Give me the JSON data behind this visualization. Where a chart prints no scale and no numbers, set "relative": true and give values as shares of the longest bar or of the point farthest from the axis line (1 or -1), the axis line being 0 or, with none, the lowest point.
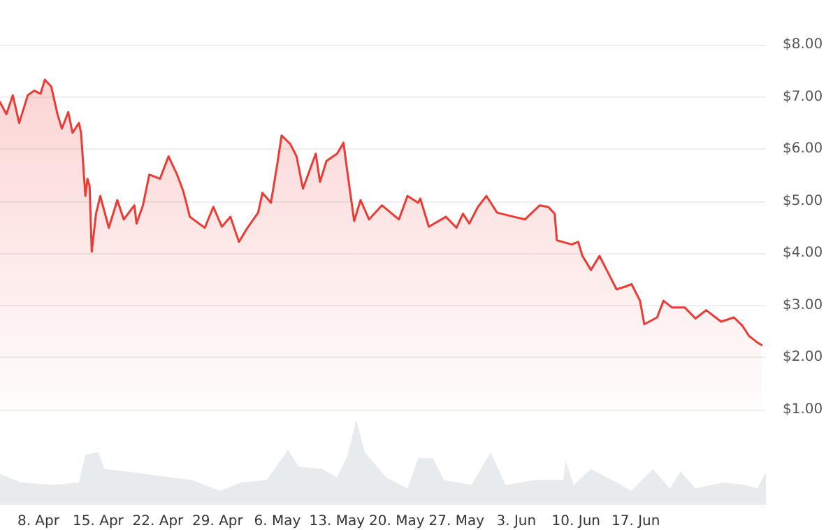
{
  "chart_data": [
    {
      "type": "area",
      "tick_labels": "y",
      "grid": "y",
      "xlim": [
        "--04-03T12:00",
        "--07-02T06:00"
      ],
      "ylim": [
        1,
        8
      ],
      "yticks": [
        {
          "value": 1,
          "label": "$1.00"
        },
        {
          "value": 2,
          "label": "$2.00"
        },
        {
          "value": 3,
          "label": "$3.00"
        },
        {
          "value": 4,
          "label": "$4.00"
        },
        {
          "value": 5,
          "label": "$5.00"
        },
        {
          "value": 6,
          "label": "$6.00"
        },
        {
          "value": 7,
          "label": "$7.00"
        },
        {
          "value": 8,
          "label": "$8.00"
        }
      ],
      "x": [
        "--04-03T12:00",
        "--04-04T06:00",
        "--04-05T00:00",
        "--04-05T18:00",
        "--04-06T18:00",
        "--04-07T12:00",
        "--04-08T06:00",
        "--04-08T18:00",
        "--04-09T12:00",
        "--04-10T06:00",
        "--04-10T18:00",
        "--04-11T12:00",
        "--04-12T00:00",
        "--04-12T18:00",
        "--04-13T00:00",
        "--04-13T12:00",
        "--04-13T18:00",
        "--04-14T00:00",
        "--04-14T06:00",
        "--04-14T18:00",
        "--04-15T06:00",
        "--04-16T06:00",
        "--04-17T06:00",
        "--04-18T00:00",
        "--04-19T06:00",
        "--04-19T12:00",
        "--04-20T06:00",
        "--04-21T00:00",
        "--04-22T06:00",
        "--04-23T06:00",
        "--04-24T06:00",
        "--04-25T00:00",
        "--04-25T18:00",
        "--04-27T12:00",
        "--04-28T12:00",
        "--04-29T12:00",
        "--04-30T12:00",
        "--05-01T12:00",
        "--05-02T12:00",
        "--05-03T18:00",
        "--05-04T06:00",
        "--05-05T06:00",
        "--05-06T00:00",
        "--05-06T12:00",
        "--05-07T12:00",
        "--05-08T06:00",
        "--05-09T00:00",
        "--05-10T12:00",
        "--05-11T00:00",
        "--05-11T18:00",
        "--05-13T00:00",
        "--05-13T18:00",
        "--05-14T06:00",
        "--05-15T00:00",
        "--05-15T18:00",
        "--05-16T18:00",
        "--05-18T06:00",
        "--05-20T06:00",
        "--05-21T06:00",
        "--05-22T12:00",
        "--05-22T18:00",
        "--05-23T18:00",
        "--05-25T18:00",
        "--05-27T00:00",
        "--05-27T18:00",
        "--05-28T12:00",
        "--05-29T12:00",
        "--05-30T12:00",
        "--05-31T18:00",
        "--06-02T18:00",
        "--06-04T00:00",
        "--06-05T18:00",
        "--06-06T18:00",
        "--06-07T12:00",
        "--06-07T18:00",
        "--06-09T12:00",
        "--06-10T06:00",
        "--06-10T18:00",
        "--06-11T18:00",
        "--06-12T18:00",
        "--06-13T18:00",
        "--06-14T18:00",
        "--06-15T18:00",
        "--06-16T12:00",
        "--06-17T12:00",
        "--06-18T00:00",
        "--06-19T12:00",
        "--06-20T06:00",
        "--06-21T06:00",
        "--06-22T18:00",
        "--06-24T00:00",
        "--06-25T06:00",
        "--06-27T00:00",
        "--06-28T12:00",
        "--06-29T12:00",
        "--06-30T06:00",
        "--07-01T06:00",
        "--07-01T18:00"
      ],
      "series": [
        {
          "color": "#ec3b35",
          "values": [
            6.9,
            6.67,
            7.03,
            6.5,
            7.03,
            7.12,
            7.06,
            7.33,
            7.2,
            6.66,
            6.39,
            6.71,
            6.31,
            6.5,
            6.31,
            5.1,
            5.43,
            5.29,
            4.03,
            4.76,
            5.1,
            4.49,
            5.02,
            4.65,
            4.92,
            4.57,
            4.92,
            5.51,
            5.43,
            5.86,
            5.51,
            5.18,
            4.7,
            4.49,
            4.89,
            4.51,
            4.7,
            4.22,
            4.49,
            4.78,
            5.16,
            4.97,
            5.72,
            6.26,
            6.1,
            5.86,
            5.24,
            5.91,
            5.37,
            5.77,
            5.91,
            6.12,
            5.51,
            4.62,
            5.02,
            4.65,
            4.92,
            4.65,
            5.1,
            4.97,
            5.05,
            4.51,
            4.7,
            4.49,
            4.76,
            4.57,
            4.89,
            5.1,
            4.78,
            4.7,
            4.65,
            4.92,
            4.89,
            4.76,
            4.25,
            4.17,
            4.22,
            3.95,
            3.68,
            3.95,
            3.63,
            3.31,
            3.36,
            3.41,
            3.09,
            2.64,
            2.77,
            3.09,
            2.96,
            2.96,
            2.75,
            2.91,
            2.69,
            2.77,
            2.61,
            2.42,
            2.29,
            2.24
          ]
        }
      ]
    },
    {
      "type": "area",
      "relative": true,
      "tick_labels": "x",
      "xlim": [
        "--04-03T12:00",
        "--07-02T06:00"
      ],
      "xticks": [
        {
          "value": "--04-08",
          "label": "8. Apr"
        },
        {
          "value": "--04-15",
          "label": "15. Apr"
        },
        {
          "value": "--04-22",
          "label": "22. Apr"
        },
        {
          "value": "--04-29",
          "label": "29. Apr"
        },
        {
          "value": "--05-06",
          "label": "6. May"
        },
        {
          "value": "--05-13",
          "label": "13. May"
        },
        {
          "value": "--05-20",
          "label": "20. May"
        },
        {
          "value": "--05-27",
          "label": "27. May"
        },
        {
          "value": "--06-03",
          "label": "3. Jun"
        },
        {
          "value": "--06-10",
          "label": "10. Jun"
        },
        {
          "value": "--06-17",
          "label": "17. Jun"
        }
      ],
      "x": [
        "--04-03T12:00",
        "--04-06T00:00",
        "--04-09T18:00",
        "--04-12T18:00",
        "--04-13T12:00",
        "--04-15T00:00",
        "--04-15T18:00",
        "--04-18T12:00",
        "--04-20T12:00",
        "--04-23T12:00",
        "--04-26T00:00",
        "--04-29T06:00",
        "--05-01T18:00",
        "--05-04T18:00",
        "--05-07T06:00",
        "--05-08T12:00",
        "--05-11T06:00",
        "--05-13T00:00",
        "--05-14T06:00",
        "--05-15T06:00",
        "--05-16T06:00",
        "--05-18T18:00",
        "--05-21T06:00",
        "--05-22T12:00",
        "--05-24T06:00",
        "--05-25T12:00",
        "--05-28T18:00",
        "--05-31T00:00",
        "--06-01T18:00",
        "--06-05T06:00",
        "--06-08T12:00",
        "--06-08T18:00",
        "--06-09T18:00",
        "--06-11T18:00",
        "--06-14T18:00",
        "--06-16T12:00",
        "--06-19T00:00",
        "--06-21T00:00",
        "--06-22T06:00",
        "--06-24T00:00",
        "--06-27T06:00",
        "--06-29T18:00",
        "--07-01T06:00",
        "--07-02T06:00"
      ],
      "series": [
        {
          "color": "#e8ebee",
          "values": [
            0.35,
            0.25,
            0.22,
            0.25,
            0.58,
            0.61,
            0.41,
            0.38,
            0.35,
            0.31,
            0.28,
            0.15,
            0.25,
            0.28,
            0.64,
            0.44,
            0.41,
            0.31,
            0.58,
            1,
            0.61,
            0.31,
            0.18,
            0.54,
            0.54,
            0.28,
            0.22,
            0.61,
            0.22,
            0.28,
            0.28,
            0.51,
            0.22,
            0.41,
            0.25,
            0.15,
            0.41,
            0.18,
            0.38,
            0.18,
            0.25,
            0.22,
            0.18,
            0.38
          ]
        }
      ]
    }
  ]
}
